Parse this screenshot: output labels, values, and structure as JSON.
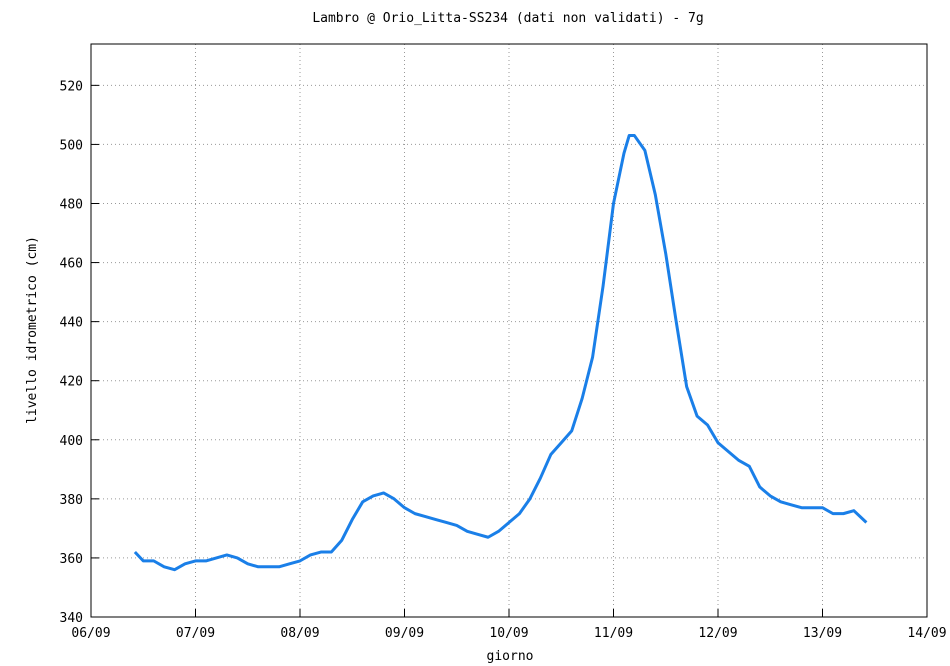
{
  "chart_data": {
    "type": "line",
    "title": "Lambro @ Orio_Litta-SS234 (dati non validati) - 7g",
    "x_label": "giorno",
    "y_label": "livello idrometrico (cm)",
    "xlim": [
      0,
      8
    ],
    "xticks": [
      {
        "value": 0,
        "label": "06/09"
      },
      {
        "value": 1,
        "label": "07/09"
      },
      {
        "value": 2,
        "label": "08/09"
      },
      {
        "value": 3,
        "label": "09/09"
      },
      {
        "value": 4,
        "label": "10/09"
      },
      {
        "value": 5,
        "label": "11/09"
      },
      {
        "value": 6,
        "label": "12/09"
      },
      {
        "value": 7,
        "label": "13/09"
      },
      {
        "value": 8,
        "label": "14/09"
      }
    ],
    "ylim": [
      340,
      534
    ],
    "yticks": [
      340,
      360,
      380,
      400,
      420,
      440,
      460,
      480,
      500,
      520
    ],
    "grid": true,
    "series": [
      {
        "color": "#1a7fe8",
        "x": [
          0.42,
          0.5,
          0.6,
          0.7,
          0.8,
          0.9,
          1.0,
          1.1,
          1.2,
          1.3,
          1.4,
          1.5,
          1.6,
          1.7,
          1.8,
          1.9,
          2.0,
          2.1,
          2.2,
          2.3,
          2.4,
          2.5,
          2.6,
          2.7,
          2.8,
          2.9,
          3.0,
          3.1,
          3.2,
          3.3,
          3.4,
          3.5,
          3.6,
          3.7,
          3.8,
          3.9,
          4.0,
          4.1,
          4.2,
          4.3,
          4.4,
          4.5,
          4.6,
          4.7,
          4.8,
          4.9,
          5.0,
          5.1,
          5.15,
          5.2,
          5.3,
          5.4,
          5.5,
          5.6,
          5.7,
          5.8,
          5.9,
          6.0,
          6.1,
          6.2,
          6.3,
          6.4,
          6.5,
          6.6,
          6.7,
          6.8,
          6.9,
          7.0,
          7.1,
          7.2,
          7.3,
          7.42
        ],
        "values": [
          362,
          359,
          359,
          357,
          356,
          358,
          359,
          359,
          360,
          361,
          360,
          358,
          357,
          357,
          357,
          358,
          359,
          361,
          362,
          362,
          366,
          373,
          379,
          381,
          382,
          380,
          377,
          375,
          374,
          373,
          372,
          371,
          369,
          368,
          367,
          369,
          372,
          375,
          380,
          387,
          395,
          399,
          403,
          414,
          428,
          452,
          480,
          497,
          503,
          503,
          498,
          483,
          463,
          440,
          418,
          408,
          405,
          399,
          396,
          393,
          391,
          384,
          381,
          379,
          378,
          377,
          377,
          377,
          375,
          375,
          376,
          372
        ]
      }
    ]
  }
}
